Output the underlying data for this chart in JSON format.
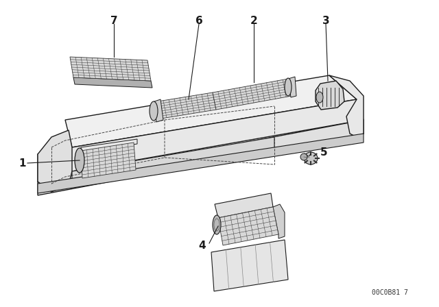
{
  "background_color": "#ffffff",
  "line_color": "#1a1a1a",
  "part_number_text": "00C0B81 7",
  "figsize": [
    6.4,
    4.48
  ],
  "dpi": 100,
  "label_font_size": 11,
  "part_number_font_size": 7
}
